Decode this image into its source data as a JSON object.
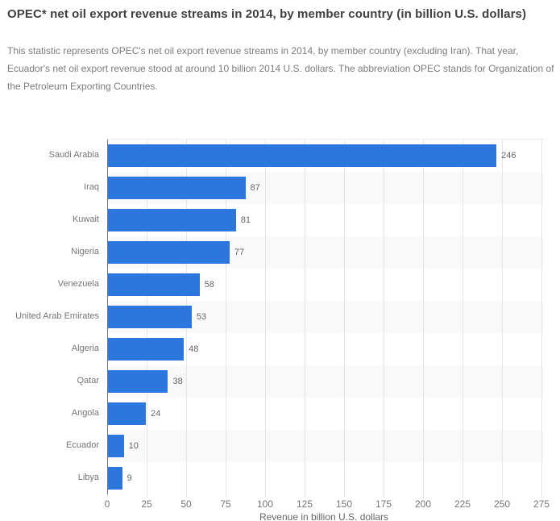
{
  "header": {
    "title": "OPEC* net oil export revenue streams in 2014, by member country (in billion U.S. dollars)",
    "description": "This statistic represents OPEC's net oil export revenue streams in 2014, by member country (excluding Iran). That year, Ecuador's net oil export revenue stood at around 10 billion 2014 U.S. dollars. The abbreviation OPEC stands for Organization of the Petroleum Exporting Countries."
  },
  "chart_data": {
    "type": "bar",
    "orientation": "horizontal",
    "title": "OPEC* net oil export revenue streams in 2014, by member country (in billion U.S. dollars)",
    "categories": [
      "Saudi Arabia",
      "Iraq",
      "Kuwait",
      "Nigeria",
      "Venezuela",
      "United Arab Emirates",
      "Algeria",
      "Qatar",
      "Angola",
      "Ecuador",
      "Libya"
    ],
    "values": [
      246,
      87,
      81,
      77,
      58,
      53,
      48,
      38,
      24,
      10,
      9
    ],
    "data_labels": [
      "246",
      "87",
      "81",
      "77",
      "58",
      "53",
      "48",
      "38",
      "24",
      "10",
      "9"
    ],
    "xlabel": "Revenue in billion U.S. dollars",
    "ylabel": "",
    "xticks": [
      0,
      25,
      50,
      75,
      100,
      125,
      150,
      175,
      200,
      225,
      250,
      275
    ],
    "xlim": [
      0,
      275
    ],
    "grid": "vertical",
    "legend": "none",
    "band_pattern": "alternating rows shaded behind bars"
  },
  "colors": {
    "bar": "#2c76dd",
    "band_shaded": "#f9f9f9",
    "band_plain": "#ffffff",
    "gridline": "#e6e6e6",
    "axis_line": "#777777",
    "title_text": "#404040",
    "description_text": "#7d7d7d",
    "category_text": "#757575",
    "value_text": "#666666",
    "tick_text": "#757575"
  }
}
